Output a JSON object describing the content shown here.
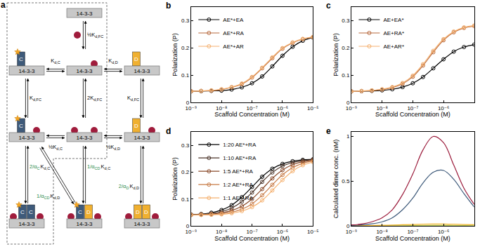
{
  "chart_data": [
    {
      "type": "scatter",
      "annotations": [
        "b"
      ],
      "x_label": "Scaffold Concentration (M)",
      "y_label": "Polarization (P)",
      "log": "x",
      "grid": false,
      "legend": "upper left",
      "marker": "open circle",
      "line_style": "solid",
      "xlim": [
        1e-09,
        1e-05
      ],
      "xticks": [
        {
          "value": 1e-09,
          "label": "10⁻⁹"
        },
        {
          "value": 1e-08,
          "label": "10⁻⁸"
        },
        {
          "value": 1e-07,
          "label": "10⁻⁷"
        },
        {
          "value": 1e-06,
          "label": "10⁻⁶"
        },
        {
          "value": 1e-05,
          "label": "10⁻⁵"
        }
      ],
      "ylim": [
        0,
        0.35
      ],
      "yticks": [
        0,
        0.1,
        0.2,
        0.3
      ],
      "x": [
        1e-09,
        2.15e-09,
        4.64e-09,
        1e-08,
        2.15e-08,
        4.64e-08,
        1e-07,
        2.15e-07,
        4.64e-07,
        1e-06,
        2.15e-06,
        4.64e-06,
        1e-05
      ],
      "series": [
        {
          "name": "AE*+EA",
          "color": "#000000",
          "values": [
            0.04,
            0.041,
            0.042,
            0.043,
            0.047,
            0.055,
            0.07,
            0.095,
            0.132,
            0.171,
            0.204,
            0.226,
            0.238
          ]
        },
        {
          "name": "AE*+RA",
          "color": "#b8683c",
          "values": [
            0.041,
            0.042,
            0.043,
            0.047,
            0.055,
            0.067,
            0.091,
            0.125,
            0.162,
            0.197,
            0.218,
            0.232,
            0.239
          ]
        },
        {
          "name": "AE*+AR",
          "color": "#f5b06e",
          "values": [
            0.04,
            0.042,
            0.044,
            0.048,
            0.056,
            0.069,
            0.093,
            0.127,
            0.165,
            0.199,
            0.22,
            0.233,
            0.24
          ]
        }
      ]
    },
    {
      "type": "scatter",
      "annotations": [
        "c"
      ],
      "x_label": "Scaffold Concentration (M)",
      "y_label": "Polarization (P)",
      "log": "x",
      "grid": false,
      "legend": "upper left",
      "marker": "open circle",
      "line_style": "solid",
      "xlim": [
        1e-09,
        1e-05
      ],
      "xticks": [
        {
          "value": 1e-09,
          "label": "10⁻⁹"
        },
        {
          "value": 1e-08,
          "label": "10⁻⁸"
        },
        {
          "value": 1e-07,
          "label": "10⁻⁷"
        },
        {
          "value": 1e-06,
          "label": "10⁻⁶"
        },
        {
          "value": 1e-05,
          "label": "10⁻⁵"
        }
      ],
      "ylim": [
        0,
        0.35
      ],
      "yticks": [
        0,
        0.1,
        0.2,
        0.3
      ],
      "x": [
        1e-09,
        2.15e-09,
        4.64e-09,
        1e-08,
        2.15e-08,
        4.64e-08,
        1e-07,
        2.15e-07,
        4.64e-07,
        1e-06,
        2.15e-06,
        4.64e-06,
        1e-05
      ],
      "series": [
        {
          "name": "AE+EA*",
          "color": "#000000",
          "values": [
            0.04,
            0.041,
            0.042,
            0.044,
            0.048,
            0.056,
            0.07,
            0.093,
            0.125,
            0.158,
            0.186,
            0.203,
            0.212
          ]
        },
        {
          "name": "AE+RA*",
          "color": "#b8683c",
          "values": [
            0.04,
            0.041,
            0.043,
            0.047,
            0.054,
            0.068,
            0.094,
            0.135,
            0.184,
            0.228,
            0.257,
            0.273,
            0.28
          ]
        },
        {
          "name": "AE+AR*",
          "color": "#f5b06e",
          "values": [
            0.04,
            0.042,
            0.044,
            0.048,
            0.056,
            0.071,
            0.098,
            0.14,
            0.189,
            0.232,
            0.26,
            0.275,
            0.282
          ]
        }
      ]
    },
    {
      "type": "scatter",
      "annotations": [
        "d"
      ],
      "x_label": "Scaffold Concentration (M)",
      "y_label": "Polarization (P)",
      "log": "x",
      "grid": false,
      "legend": "upper left",
      "marker": "open circle",
      "line_style": "solid",
      "xlim": [
        1e-09,
        1e-05
      ],
      "xticks": [
        {
          "value": 1e-09,
          "label": "10⁻⁹"
        },
        {
          "value": 1e-08,
          "label": "10⁻⁸"
        },
        {
          "value": 1e-07,
          "label": "10⁻⁷"
        },
        {
          "value": 1e-06,
          "label": "10⁻⁶"
        },
        {
          "value": 1e-05,
          "label": "10⁻⁵"
        }
      ],
      "ylim": [
        0,
        0.35
      ],
      "yticks": [
        0,
        0.1,
        0.2,
        0.3
      ],
      "x": [
        1e-09,
        2.15e-09,
        4.64e-09,
        1e-08,
        2.15e-08,
        4.64e-08,
        1e-07,
        2.15e-07,
        4.64e-07,
        1e-06,
        2.15e-06,
        4.64e-06,
        1e-05
      ],
      "series": [
        {
          "name": "1:20 AE*+RA",
          "color": "#000000",
          "values": [
            0.042,
            0.044,
            0.049,
            0.059,
            0.077,
            0.107,
            0.145,
            0.183,
            0.213,
            0.231,
            0.241,
            0.246,
            0.248
          ]
        },
        {
          "name": "1:10 AE*+RA",
          "color": "#4a3328",
          "values": [
            0.041,
            0.043,
            0.046,
            0.053,
            0.066,
            0.09,
            0.124,
            0.164,
            0.199,
            0.223,
            0.236,
            0.243,
            0.247
          ]
        },
        {
          "name": "1:5 AE*+RA",
          "color": "#8a4a2a",
          "values": [
            0.041,
            0.042,
            0.044,
            0.048,
            0.057,
            0.073,
            0.1,
            0.137,
            0.177,
            0.208,
            0.228,
            0.239,
            0.245
          ]
        },
        {
          "name": "1:2 AE*+RA",
          "color": "#c77a45",
          "values": [
            0.041,
            0.041,
            0.042,
            0.045,
            0.051,
            0.062,
            0.082,
            0.114,
            0.153,
            0.19,
            0.217,
            0.233,
            0.242
          ]
        },
        {
          "name": "1:1 AE*+RA",
          "color": "#f5b06e",
          "values": [
            0.04,
            0.041,
            0.042,
            0.043,
            0.047,
            0.055,
            0.07,
            0.095,
            0.132,
            0.171,
            0.204,
            0.226,
            0.238
          ]
        }
      ]
    },
    {
      "type": "line",
      "annotations": [
        "e"
      ],
      "x_label": "Scaffold Concentration (M)",
      "y_label": "Calculated dimer conc. (nM)",
      "log": "x",
      "grid": false,
      "line_style": "solid",
      "xlim": [
        1e-09,
        1e-05
      ],
      "xticks": [
        {
          "value": 1e-09,
          "label": "10⁻⁹"
        },
        {
          "value": 1e-08,
          "label": "10⁻⁸"
        },
        {
          "value": 1e-07,
          "label": "10⁻⁷"
        },
        {
          "value": 1e-06,
          "label": "10⁻⁶"
        },
        {
          "value": 1e-05,
          "label": "10⁻⁵"
        }
      ],
      "ylim": [
        0,
        1.05
      ],
      "yticks": [
        0,
        0.5,
        1
      ],
      "x": [
        1e-09,
        2.15e-09,
        4.64e-09,
        1e-08,
        2.15e-08,
        4.64e-08,
        1e-07,
        2.15e-07,
        4.64e-07,
        1e-06,
        2.15e-06,
        4.64e-06,
        1e-05
      ],
      "series": [
        {
          "color": "#b8c94a",
          "values": [
            0,
            0,
            0,
            0,
            0.001,
            0.002,
            0.003,
            0.004,
            0.005,
            0.005,
            0.004,
            0.003,
            0.002
          ]
        },
        {
          "color": "#f0b429",
          "values": [
            0.001,
            0.002,
            0.004,
            0.006,
            0.009,
            0.012,
            0.015,
            0.018,
            0.02,
            0.02,
            0.018,
            0.015,
            0.012
          ]
        },
        {
          "color": "#3e5a7a",
          "values": [
            0.005,
            0.01,
            0.022,
            0.045,
            0.09,
            0.18,
            0.31,
            0.48,
            0.6,
            0.62,
            0.52,
            0.36,
            0.21
          ]
        },
        {
          "color": "#9b1b3b",
          "values": [
            0.01,
            0.02,
            0.045,
            0.09,
            0.18,
            0.35,
            0.58,
            0.85,
            1.0,
            0.93,
            0.68,
            0.42,
            0.24
          ]
        }
      ]
    }
  ],
  "diagram": {
    "panel": "a",
    "scaffold": "14-3-3",
    "proteins": {
      "C": "C",
      "D": "D"
    },
    "symbol": "K",
    "constants": [
      {
        "coef": "½",
        "sub": "d,FC"
      },
      {
        "coef": "",
        "sub": "d,C"
      },
      {
        "coef": "",
        "sub": "d,D"
      },
      {
        "coef": "",
        "sub": "d,FC"
      },
      {
        "coef": "2",
        "sub": "d,FC"
      },
      {
        "coef": "",
        "sub": "d,FC"
      },
      {
        "coef": "½",
        "sub": "d,C"
      },
      {
        "coef": "½",
        "sub": "d,D"
      },
      {
        "coef": "2/α",
        "coef_sub": "C",
        "sub": "d,C"
      },
      {
        "coef": "1/α",
        "coef_sub": "CD",
        "sub": "d,D"
      },
      {
        "coef": "1/α",
        "coef_sub": "CD",
        "sub": "d,C"
      },
      {
        "coef": "2/α",
        "coef_sub": "D",
        "sub": "d,D"
      }
    ]
  }
}
